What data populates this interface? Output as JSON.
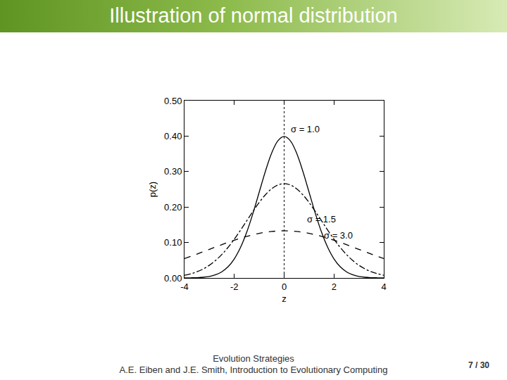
{
  "slide": {
    "title": "Illustration of normal distribution",
    "footer": [
      "Evolution Strategies",
      "A.E. Eiben and J.E. Smith, Introduction to Evolutionary Computing"
    ],
    "page": "7 / 30"
  },
  "chart_data": {
    "type": "line",
    "x_label": "z",
    "y_label": "p(z)",
    "x": [
      -4,
      -3.75,
      -3.5,
      -3.25,
      -3,
      -2.75,
      -2.5,
      -2.25,
      -2,
      -1.75,
      -1.5,
      -1.25,
      -1,
      -0.75,
      -0.5,
      -0.25,
      0,
      0.25,
      0.5,
      0.75,
      1,
      1.25,
      1.5,
      1.75,
      2,
      2.25,
      2.5,
      2.75,
      3,
      3.25,
      3.5,
      3.75,
      4
    ],
    "series": [
      {
        "name": "σ = 1.0",
        "color": "#000000",
        "line_style": "solid",
        "values": [
          0.0001,
          0.0004,
          0.0009,
          0.002,
          0.0044,
          0.0091,
          0.0175,
          0.0317,
          0.054,
          0.0863,
          0.1295,
          0.1826,
          0.242,
          0.3011,
          0.3521,
          0.3867,
          0.3989,
          0.3867,
          0.3521,
          0.3011,
          0.242,
          0.1826,
          0.1295,
          0.0863,
          0.054,
          0.0317,
          0.0175,
          0.0091,
          0.0044,
          0.002,
          0.0009,
          0.0004,
          0.0001
        ]
      },
      {
        "name": "σ = 1.5",
        "color": "#000000",
        "line_style": "dashdot",
        "values": [
          0.0076,
          0.0117,
          0.0175,
          0.0254,
          0.036,
          0.0495,
          0.0663,
          0.0863,
          0.1093,
          0.1347,
          0.1613,
          0.1879,
          0.213,
          0.2347,
          0.2516,
          0.2623,
          0.266,
          0.2623,
          0.2516,
          0.2347,
          0.213,
          0.1879,
          0.1613,
          0.1347,
          0.1093,
          0.0863,
          0.0663,
          0.0495,
          0.036,
          0.0254,
          0.0175,
          0.0117,
          0.0076
        ]
      },
      {
        "name": "σ = 3.0",
        "color": "#000000",
        "line_style": "dash",
        "values": [
          0.0547,
          0.0609,
          0.0673,
          0.074,
          0.0807,
          0.0874,
          0.094,
          0.1004,
          0.1065,
          0.1122,
          0.1174,
          0.1219,
          0.1258,
          0.1289,
          0.1311,
          0.1325,
          0.133,
          0.1325,
          0.1311,
          0.1289,
          0.1258,
          0.1219,
          0.1174,
          0.1122,
          0.1065,
          0.1004,
          0.094,
          0.0874,
          0.0807,
          0.074,
          0.0673,
          0.0609,
          0.0547
        ]
      }
    ],
    "annotations": [
      {
        "text": "σ = 1.0",
        "x": 0.2,
        "y": 0.42
      },
      {
        "text": "σ = 1.5",
        "x": 0.85,
        "y": 0.165
      },
      {
        "text": "σ = 3.0",
        "x": 1.55,
        "y": 0.12
      }
    ],
    "vline": {
      "x": 0,
      "line_style": "dotted"
    },
    "xlim": [
      -4,
      4
    ],
    "xticks": [
      -4,
      -2,
      0,
      2,
      4
    ],
    "ylim": [
      0,
      0.5
    ],
    "yticks": [
      {
        "value": 0,
        "label": "0.00"
      },
      {
        "value": 0.1,
        "label": "0.10"
      },
      {
        "value": 0.2,
        "label": "0.20"
      },
      {
        "value": 0.3,
        "label": "0.30"
      },
      {
        "value": 0.4,
        "label": "0.40"
      },
      {
        "value": 0.5,
        "label": "0.50"
      }
    ],
    "grid": false
  }
}
